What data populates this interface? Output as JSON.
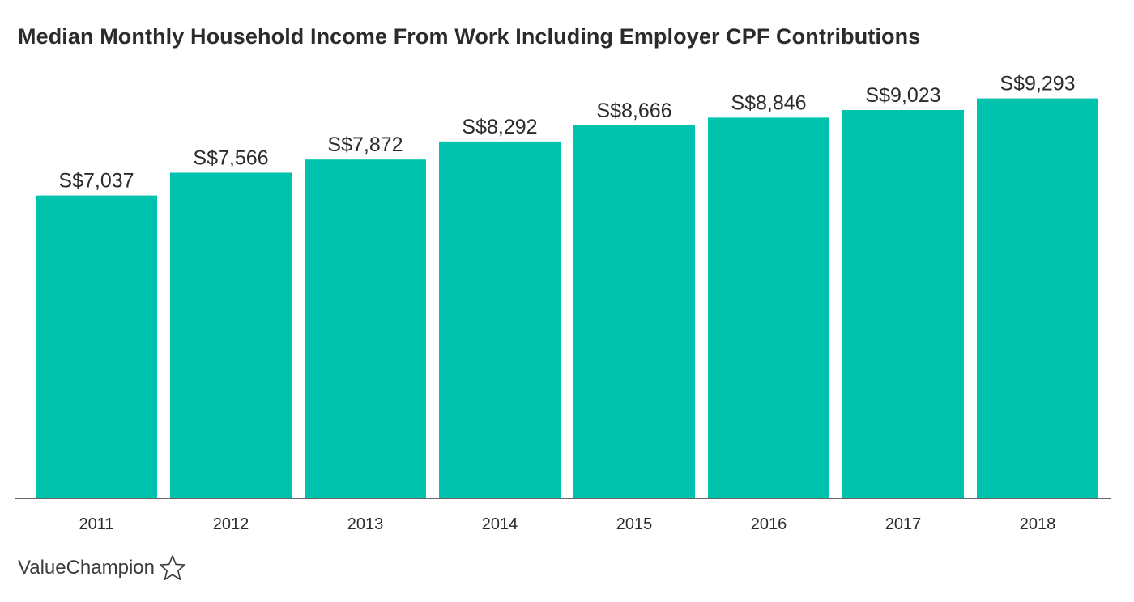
{
  "brand": {
    "name": "ValueChampion",
    "logo_icon": "star-outline-icon"
  },
  "colors": {
    "bar": "#00c2ad",
    "axis": "#333333",
    "text": "#2b2b2b"
  },
  "chart_data": {
    "type": "bar",
    "title": "Median Monthly Household Income From Work Including Employer CPF Contributions",
    "xlabel": "",
    "ylabel": "",
    "categories": [
      "2011",
      "2012",
      "2013",
      "2014",
      "2015",
      "2016",
      "2017",
      "2018"
    ],
    "values": [
      7037,
      7566,
      7872,
      8292,
      8666,
      8846,
      9023,
      9293
    ],
    "data_labels": [
      "S$7,037",
      "S$7,566",
      "S$7,872",
      "S$8,292",
      "S$8,666",
      "S$8,846",
      "S$9,023",
      "S$9,293"
    ],
    "ylim": [
      0,
      10150
    ],
    "grid": false,
    "legend": "none"
  }
}
